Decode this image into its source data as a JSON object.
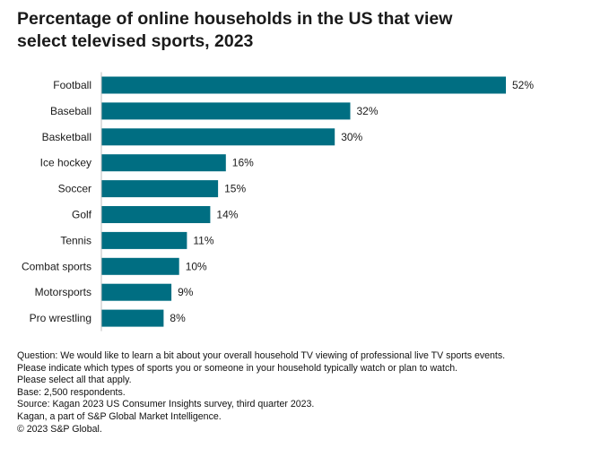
{
  "title_lines": [
    "Percentage of online households in the US that view",
    "select televised sports, 2023"
  ],
  "chart_data": {
    "type": "bar",
    "orientation": "horizontal",
    "categories": [
      "Football",
      "Baseball",
      "Basketball",
      "Ice hockey",
      "Soccer",
      "Golf",
      "Tennis",
      "Combat sports",
      "Motorsports",
      "Pro wrestling"
    ],
    "values": [
      52,
      32,
      30,
      16,
      15,
      14,
      11,
      10,
      9,
      8
    ],
    "value_labels": [
      "52%",
      "32%",
      "30%",
      "16%",
      "15%",
      "14%",
      "11%",
      "10%",
      "9%",
      "8%"
    ],
    "unit": "%",
    "xlim": [
      0,
      52
    ],
    "grid": false,
    "legend": "none",
    "bar_color": "#006e82"
  },
  "notes": [
    "Question: We would like to learn a bit about your overall household TV viewing of professional live TV sports events.",
    "Please indicate which types of sports you or someone in your household typically watch or plan to watch.",
    "Please select all that apply.",
    "Base: 2,500 respondents.",
    "Source:  Kagan 2023 US Consumer Insights survey, third quarter 2023.",
    "Kagan, a part of S&P Global Market Intelligence.",
    "© 2023 S&P Global."
  ]
}
